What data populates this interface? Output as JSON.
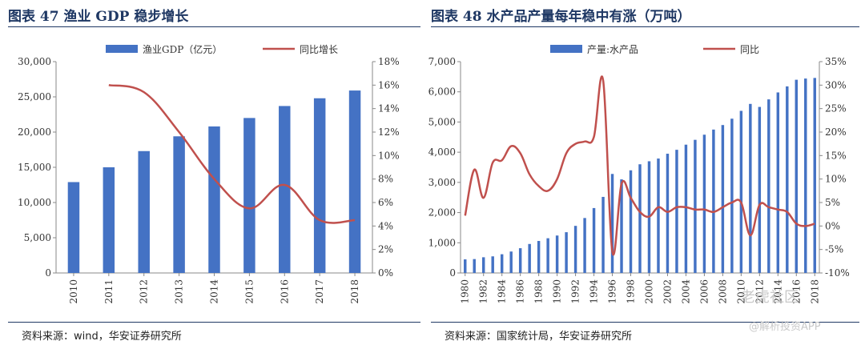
{
  "left_panel": {
    "title": "图表 47 渔业 GDP 稳步增长",
    "source": "资料来源：wind，华安证券研究所"
  },
  "right_panel": {
    "title": "图表 48 水产品产量每年稳中有涨（万吨）",
    "source": "资料来源：国家统计局，华安证券研究所"
  },
  "watermark": {
    "main": "老虎社区",
    "sub": "@解析投资APP"
  },
  "colors": {
    "bar": "#4472c4",
    "line": "#c0504d",
    "title": "#1f3864"
  },
  "chart_data": [
    {
      "type": "bar",
      "title": "",
      "categories": [
        "2010",
        "2011",
        "2012",
        "2013",
        "2014",
        "2015",
        "2016",
        "2017",
        "2018"
      ],
      "series": [
        {
          "name": "渔业GDP（亿元）",
          "kind": "bar",
          "axis": "left",
          "values": [
            12900,
            15000,
            17300,
            19400,
            20800,
            22000,
            23700,
            24800,
            25900
          ]
        },
        {
          "name": "同比增长",
          "kind": "line",
          "axis": "right",
          "unit": "%",
          "values": [
            null,
            16.0,
            15.4,
            12.0,
            8.0,
            5.5,
            7.5,
            4.5,
            4.5
          ]
        }
      ],
      "y_left": {
        "min": 0,
        "max": 30000,
        "ticks": [
          "0",
          "5,000",
          "10,000",
          "15,000",
          "20,000",
          "25,000",
          "30,000"
        ]
      },
      "y_right": {
        "min": 0,
        "max": 18,
        "ticks": [
          "0%",
          "2%",
          "4%",
          "6%",
          "8%",
          "10%",
          "12%",
          "14%",
          "16%",
          "18%"
        ]
      },
      "legend": "top-center",
      "grid": false
    },
    {
      "type": "bar",
      "title": "",
      "categories": [
        "1980",
        "1981",
        "1982",
        "1983",
        "1984",
        "1985",
        "1986",
        "1987",
        "1988",
        "1989",
        "1990",
        "1991",
        "1992",
        "1993",
        "1994",
        "1995",
        "1996",
        "1997",
        "1998",
        "1999",
        "2000",
        "2001",
        "2002",
        "2003",
        "2004",
        "2005",
        "2006",
        "2007",
        "2008",
        "2009",
        "2010",
        "2011",
        "2012",
        "2013",
        "2014",
        "2015",
        "2016",
        "2017",
        "2018"
      ],
      "tick_labels": [
        "1980",
        "1982",
        "1984",
        "1986",
        "1988",
        "1990",
        "1992",
        "1994",
        "1996",
        "1998",
        "2000",
        "2002",
        "2004",
        "2006",
        "2008",
        "2010",
        "2012",
        "2014",
        "2016",
        "2018"
      ],
      "series": [
        {
          "name": "产量:水产品",
          "kind": "bar",
          "axis": "left",
          "values": [
            450,
            460,
            520,
            550,
            620,
            710,
            820,
            960,
            1060,
            1150,
            1240,
            1350,
            1560,
            1820,
            2150,
            2520,
            3280,
            3100,
            3400,
            3600,
            3700,
            3790,
            3950,
            4080,
            4250,
            4410,
            4580,
            4750,
            4900,
            5110,
            5370,
            5600,
            5500,
            5750,
            5980,
            6180,
            6400,
            6440,
            6460
          ]
        },
        {
          "name": "同比",
          "kind": "line",
          "axis": "right",
          "unit": "%",
          "values": [
            2.2,
            12.0,
            6.0,
            13.5,
            14.0,
            17.0,
            15.5,
            11.0,
            8.5,
            7.5,
            10.0,
            15.5,
            17.5,
            18.0,
            19.0,
            31.0,
            -5.5,
            9.0,
            6.0,
            3.0,
            2.0,
            4.0,
            3.0,
            4.0,
            4.0,
            3.5,
            3.5,
            3.0,
            4.0,
            5.0,
            5.0,
            -2.0,
            4.5,
            4.0,
            3.5,
            3.0,
            0.5,
            0.0,
            0.5
          ]
        }
      ],
      "y_left": {
        "min": 0,
        "max": 7000,
        "ticks": [
          "0",
          "1,000",
          "2,000",
          "3,000",
          "4,000",
          "5,000",
          "6,000",
          "7,000"
        ]
      },
      "y_right": {
        "min": -10,
        "max": 35,
        "ticks": [
          "-10%",
          "-5%",
          "0%",
          "5%",
          "10%",
          "15%",
          "20%",
          "25%",
          "30%",
          "35%"
        ]
      },
      "legend": "top-center",
      "grid": false
    }
  ]
}
